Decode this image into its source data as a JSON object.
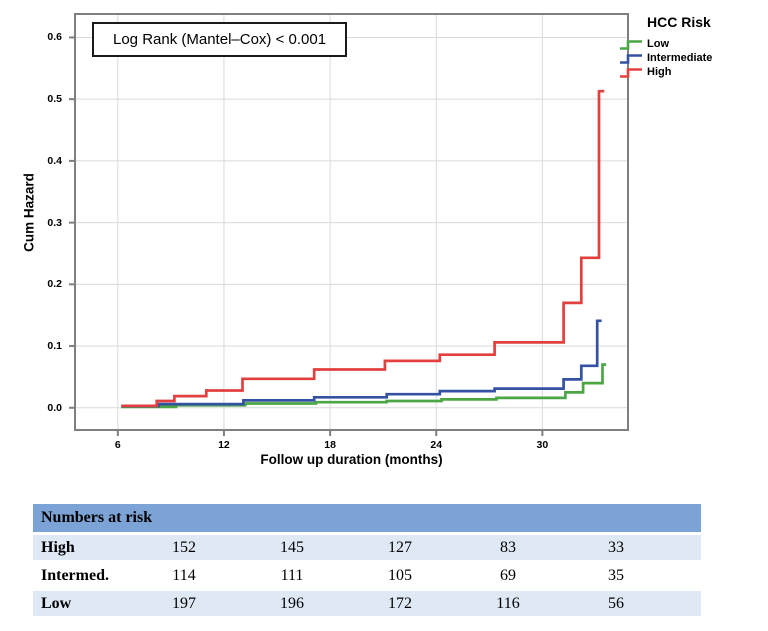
{
  "theme": {
    "low_color": "#4CA646",
    "intermediate_color": "#3452A4",
    "high_color": "#E2403F",
    "grid_color": "#D9D9D9",
    "frame_color": "#7F7F7F",
    "table_header_bg": "#7BA3D6",
    "table_row_alt_bg": "#DFE8F5",
    "annotation_border": "#1A1A1A"
  },
  "chart_data": {
    "type": "line",
    "subtype": "step-cumulative-hazard",
    "annotation": "Log Rank (Mantel–Cox) < 0.001",
    "xlabel": "Follow up duration (months)",
    "ylabel": "Cum Hazard",
    "xlim": [
      3.58,
      34.84
    ],
    "ylim": [
      -0.036,
      0.638
    ],
    "xticks": [
      "6",
      "12",
      "18",
      "24",
      "30"
    ],
    "yticks": [
      "0.0",
      "0.1",
      "0.2",
      "0.3",
      "0.4",
      "0.5",
      "0.6"
    ],
    "grid": "on",
    "legend_title": "HCC Risk",
    "legend_position": "top-right-outside",
    "series": [
      {
        "name": "Low",
        "color": "#4CA646",
        "points": [
          [
            6.2,
            0.0015
          ],
          [
            9.3,
            0.004
          ],
          [
            13.2,
            0.007
          ],
          [
            17.2,
            0.009
          ],
          [
            21.2,
            0.011
          ],
          [
            24.3,
            0.0135
          ],
          [
            27.4,
            0.016
          ],
          [
            31.3,
            0.025
          ],
          [
            32.3,
            0.04
          ],
          [
            33.4,
            0.07
          ],
          [
            33.6,
            0.07
          ]
        ]
      },
      {
        "name": "Intermediate",
        "color": "#3452A4",
        "points": [
          [
            6.2,
            0.0025
          ],
          [
            8.3,
            0.006
          ],
          [
            13.1,
            0.012
          ],
          [
            17.1,
            0.017
          ],
          [
            21.2,
            0.022
          ],
          [
            24.2,
            0.027
          ],
          [
            27.3,
            0.031
          ],
          [
            31.2,
            0.046
          ],
          [
            32.2,
            0.068
          ],
          [
            33.1,
            0.141
          ],
          [
            33.35,
            0.141
          ]
        ]
      },
      {
        "name": "High",
        "color": "#E2403F",
        "points": [
          [
            6.2,
            0.003
          ],
          [
            8.2,
            0.011
          ],
          [
            9.2,
            0.019
          ],
          [
            11.0,
            0.028
          ],
          [
            13.05,
            0.047
          ],
          [
            17.1,
            0.062
          ],
          [
            21.1,
            0.076
          ],
          [
            24.2,
            0.086
          ],
          [
            27.3,
            0.106
          ],
          [
            31.2,
            0.17
          ],
          [
            32.2,
            0.243
          ],
          [
            33.2,
            0.513
          ],
          [
            33.5,
            0.513
          ]
        ]
      }
    ]
  },
  "risk_table": {
    "header": "Numbers at risk",
    "rows": [
      {
        "label": "High",
        "values": [
          "152",
          "145",
          "127",
          "83",
          "33"
        ]
      },
      {
        "label": "Intermed.",
        "values": [
          "114",
          "111",
          "105",
          "69",
          "35"
        ]
      },
      {
        "label": "Low",
        "values": [
          "197",
          "196",
          "172",
          "116",
          "56"
        ]
      }
    ]
  }
}
